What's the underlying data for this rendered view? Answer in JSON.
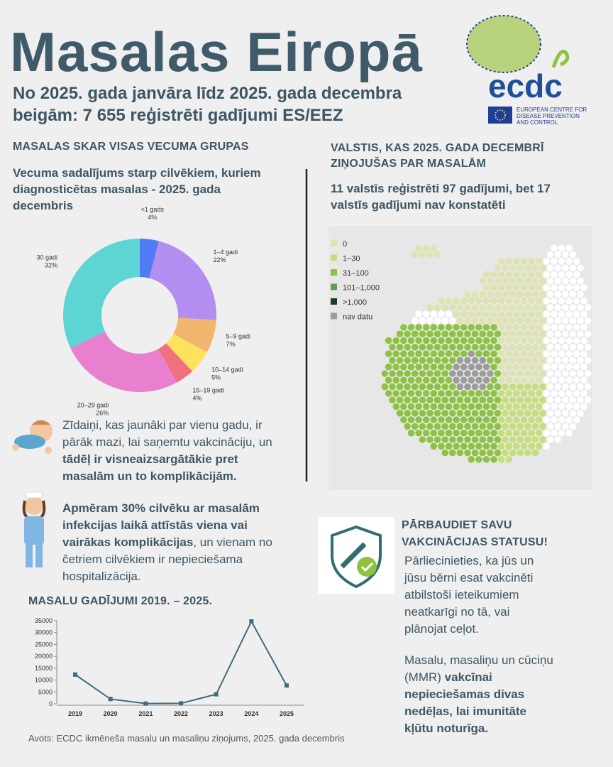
{
  "header": {
    "title": "Masalas Eiropā",
    "subtitle": "No 2025. gada janvāra līdz 2025. gada decembra beigām: 7 655 reģistrēti gadījumi ES/EEZ",
    "logo": "ecdc",
    "logo_caption_1": "EUROPEAN CENTRE FOR",
    "logo_caption_2": "DISEASE PREVENTION",
    "logo_caption_3": "AND CONTROL"
  },
  "age_section": {
    "heading": "MASALAS SKAR VISAS VECUMA GRUPAS"
  },
  "infants_note": {
    "plain": "Zīdaiņi, kas jaunāki par vienu gadu, ir pārāk mazi, lai saņemtu vakcināciju, un ",
    "bold": "tādēļ ir visneaizsargātākie pret masalām un to komplikācijām."
  },
  "complications_note": {
    "bold": "Apmēram 30% cilvēku ar masalām infekcijas laikā attīstās viena vai vairākas komplikācijas",
    "plain": ", un vienam no četriem cilvēkiem ir nepieciešama hospitalizācija."
  },
  "map_section": {
    "heading": "VALSTIS, KAS 2025. GADA DECEMBRĪ ZIŅOJUŠAS PAR MASALĀM",
    "subheading": "11 valstīs reģistrēti 97 gadījumi, bet 17 valstīs gadījumi nav konstatēti",
    "legend": [
      {
        "label": "0",
        "color": "#dfe3b3"
      },
      {
        "label": "1–30",
        "color": "#c6df7c"
      },
      {
        "label": "31–100",
        "color": "#8dc243"
      },
      {
        "label": "101–1,000",
        "color": "#5c9c55"
      },
      {
        "label": ">1,000",
        "color": "#1f3a2a"
      },
      {
        "label": "nav datu",
        "color": "#9c9c9c"
      }
    ]
  },
  "vaccination": {
    "heading": "PĀRBAUDIET SAVU VAKCINĀCIJAS STATUSU!",
    "paragraph": "Pārliecinieties, ka jūs un jūsu bērni esat vakcinēti atbilstoši ieteikumiem neatkarīgi no tā, vai plānojat ceļot.",
    "plain": "Masalu, masaliņu un cūciņu (MMR) ",
    "bold": "vakcīnai nepieciešamas divas nedēļas, lai imunitāte kļūtu noturīga."
  },
  "source": "Avots:  ECDC ikmēneša masalu un masaliņu ziņojums, 2025. gada decembris",
  "chart_data": [
    {
      "type": "pie",
      "title": "Vecuma sadalījums starp cilvēkiem, kuriem diagnosticētas masalas - 2025. gada decembris",
      "categories": [
        "<1 gads",
        "1–4 gadi",
        "5–9 gadi",
        "10–14 gadi",
        "15–19 gadi",
        "20–29 gadi",
        "30 gadi"
      ],
      "values": [
        4,
        22,
        7,
        5,
        4,
        26,
        32
      ],
      "value_labels": [
        "4%",
        "22%",
        "7%",
        "5%",
        "4%",
        "26%",
        "32%"
      ],
      "colors": [
        "#4f7cf5",
        "#b28ef0",
        "#f2b56e",
        "#fde25c",
        "#f0707f",
        "#e880cf",
        "#5dd5d4"
      ]
    },
    {
      "type": "line",
      "title": "MASALU GADĪJUMI 2019. – 2025.",
      "categories": [
        "2019",
        "2020",
        "2021",
        "2022",
        "2023",
        "2024",
        "2025"
      ],
      "values": [
        12300,
        2000,
        100,
        200,
        4000,
        34700,
        7700
      ],
      "color": "#3f6b7f",
      "ylim": [
        0,
        35000
      ],
      "yticks": [
        0,
        5000,
        10000,
        15000,
        20000,
        25000,
        30000,
        35000
      ]
    }
  ]
}
